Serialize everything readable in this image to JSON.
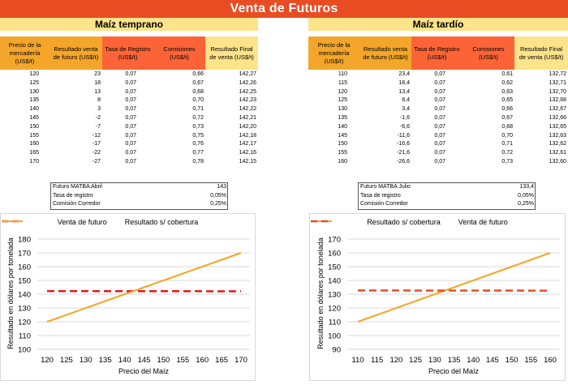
{
  "title": "Venta de Futuros",
  "colors": {
    "title_bg": "#e84c22",
    "header_orange": "#f4a62a",
    "header_red": "#fc6438",
    "header_yellow": "#fde38a",
    "line_orange": "#f4a62a",
    "dash_red_left": "#e31a1c",
    "dash_red_right": "#e84c22"
  },
  "left": {
    "subtitle": "Maíz temprano",
    "columns": [
      "Precio de la mercadería (US$/t)",
      "Resultado venta de futuro (US$/t)",
      "Tasa de Registro (US$/t)",
      "Comisiones (US$/t)",
      "Resultado Final de venta (US$/t)"
    ],
    "rows": [
      [
        "120",
        "23",
        "0,07",
        "0,66",
        "142,27"
      ],
      [
        "125",
        "18",
        "0,07",
        "0,67",
        "142,26"
      ],
      [
        "130",
        "13",
        "0,07",
        "0,68",
        "142,25"
      ],
      [
        "135",
        "8",
        "0,07",
        "0,70",
        "142,23"
      ],
      [
        "140",
        "3",
        "0,07",
        "0,71",
        "142,22"
      ],
      [
        "145",
        "-2",
        "0,07",
        "0,72",
        "142,21"
      ],
      [
        "150",
        "-7",
        "0,07",
        "0,73",
        "142,20"
      ],
      [
        "155",
        "-12",
        "0,07",
        "0,75",
        "142,18"
      ],
      [
        "160",
        "-17",
        "0,07",
        "0,76",
        "142,17"
      ],
      [
        "165",
        "-22",
        "0,07",
        "0,77",
        "142,16"
      ],
      [
        "170",
        "-27",
        "0,07",
        "0,78",
        "142,15"
      ]
    ],
    "info": [
      {
        "label": "Futuro MATBA Abril",
        "value": "143"
      },
      {
        "label": "Tasa de registro",
        "value": "0,05%"
      },
      {
        "label": "Comisión Corredor",
        "value": "0,25%"
      }
    ]
  },
  "right": {
    "subtitle": "Maíz tardío",
    "columns": [
      "Precio de la mercadería (US$/t)",
      "Resultado venta de futuro (US$/t)",
      "Tasa de Registro (US$/t)",
      "Comisiones (US$/t)",
      "Resultado Final de venta (US$/t)"
    ],
    "rows": [
      [
        "110",
        "23,4",
        "0,07",
        "0,61",
        "132,72"
      ],
      [
        "115",
        "18,4",
        "0,07",
        "0,62",
        "132,71"
      ],
      [
        "120",
        "13,4",
        "0,07",
        "0,63",
        "132,70"
      ],
      [
        "125",
        "8,4",
        "0,07",
        "0,65",
        "132,68"
      ],
      [
        "130",
        "3,4",
        "0,07",
        "0,66",
        "132,67"
      ],
      [
        "135",
        "-1,6",
        "0,07",
        "0,67",
        "132,66"
      ],
      [
        "140",
        "-6,6",
        "0,07",
        "0,68",
        "132,65"
      ],
      [
        "145",
        "-11,6",
        "0,07",
        "0,70",
        "132,63"
      ],
      [
        "150",
        "-16,6",
        "0,07",
        "0,71",
        "132,62"
      ],
      [
        "155",
        "-21,6",
        "0,07",
        "0,72",
        "132,61"
      ],
      [
        "160",
        "-26,6",
        "0,07",
        "0,73",
        "132,60"
      ]
    ],
    "info": [
      {
        "label": "Futuro MATBA Julio",
        "value": "133,4"
      },
      {
        "label": "Tasa de registro",
        "value": "0,05%"
      },
      {
        "label": "Comisión Corredor",
        "value": "0,25%"
      }
    ]
  },
  "chart_data": [
    {
      "type": "line",
      "xlabel": "Precio del Maíz",
      "ylabel": "Resultado en dólares por tonelada",
      "ylim": [
        100,
        180
      ],
      "yticks": [
        "100",
        "110",
        "120",
        "130",
        "140",
        "150",
        "160",
        "170",
        "180"
      ],
      "categories": [
        "120",
        "125",
        "130",
        "135",
        "140",
        "145",
        "150",
        "155",
        "160",
        "165",
        "170"
      ],
      "grid": true,
      "legend_position": "top",
      "legend_order": [
        "Venta de futuro",
        "Resultado s/ cobertura"
      ],
      "series": [
        {
          "name": "Venta de futuro",
          "style": "dashed",
          "values": [
            142.27,
            142.26,
            142.25,
            142.23,
            142.22,
            142.21,
            142.2,
            142.18,
            142.17,
            142.16,
            142.15
          ]
        },
        {
          "name": "Resultado s/ cobertura",
          "style": "solid",
          "values": [
            120,
            125,
            130,
            135,
            140,
            145,
            150,
            155,
            160,
            165,
            170
          ]
        }
      ]
    },
    {
      "type": "line",
      "xlabel": "Precio del Maíz",
      "ylabel": "Resultado en dólares por tonelada",
      "ylim": [
        90,
        170
      ],
      "yticks": [
        "90",
        "100",
        "110",
        "120",
        "130",
        "140",
        "150",
        "160",
        "170"
      ],
      "categories": [
        "110",
        "115",
        "120",
        "125",
        "130",
        "135",
        "140",
        "145",
        "150",
        "155",
        "160"
      ],
      "grid": true,
      "legend_position": "top",
      "legend_order": [
        "Resultado s/ cobertura",
        "Venta de futuro"
      ],
      "series": [
        {
          "name": "Resultado s/ cobertura",
          "style": "solid",
          "values": [
            110,
            115,
            120,
            125,
            130,
            135,
            140,
            145,
            150,
            155,
            160
          ]
        },
        {
          "name": "Venta de futuro",
          "style": "dashed",
          "values": [
            132.72,
            132.71,
            132.7,
            132.68,
            132.67,
            132.66,
            132.65,
            132.63,
            132.62,
            132.61,
            132.6
          ]
        }
      ]
    }
  ]
}
